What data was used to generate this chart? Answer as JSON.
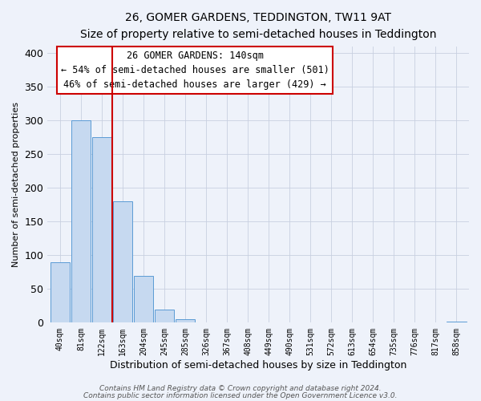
{
  "title": "26, GOMER GARDENS, TEDDINGTON, TW11 9AT",
  "subtitle": "Size of property relative to semi-detached houses in Teddington",
  "xlabel": "Distribution of semi-detached houses by size in Teddington",
  "ylabel": "Number of semi-detached properties",
  "bin_labels": [
    "40sqm",
    "81sqm",
    "122sqm",
    "163sqm",
    "204sqm",
    "245sqm",
    "285sqm",
    "326sqm",
    "367sqm",
    "408sqm",
    "449sqm",
    "490sqm",
    "531sqm",
    "572sqm",
    "613sqm",
    "654sqm",
    "735sqm",
    "776sqm",
    "817sqm",
    "858sqm"
  ],
  "bar_values": [
    90,
    300,
    275,
    180,
    70,
    20,
    5,
    0,
    0,
    0,
    0,
    0,
    0,
    0,
    0,
    0,
    0,
    0,
    0,
    2
  ],
  "bar_color": "#c6d9f0",
  "bar_edge_color": "#5b9bd5",
  "vline_x": 2.5,
  "vline_color": "#cc0000",
  "ylim": [
    0,
    410
  ],
  "yticks": [
    0,
    50,
    100,
    150,
    200,
    250,
    300,
    350,
    400
  ],
  "annotation_title": "26 GOMER GARDENS: 140sqm",
  "annotation_line1": "← 54% of semi-detached houses are smaller (501)",
  "annotation_line2": "46% of semi-detached houses are larger (429) →",
  "annotation_box_color": "#ffffff",
  "annotation_box_edge": "#cc0000",
  "footer_line1": "Contains HM Land Registry data © Crown copyright and database right 2024.",
  "footer_line2": "Contains public sector information licensed under the Open Government Licence v3.0.",
  "background_color": "#eef2fa",
  "grid_color": "#c8d0e0"
}
